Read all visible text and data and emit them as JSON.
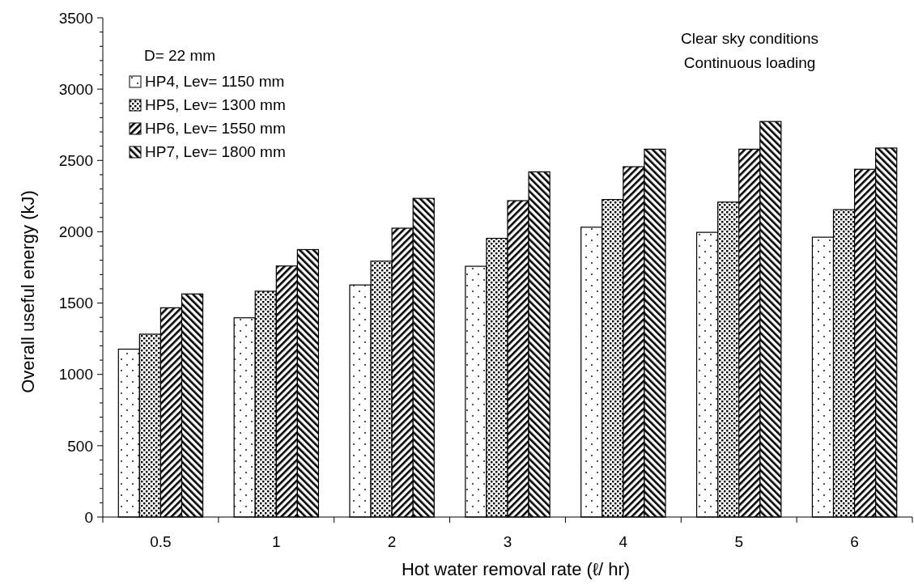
{
  "chart_data": {
    "type": "bar",
    "xlabel": "Hot water removal rate (ℓ/ hr)",
    "ylabel": "Overall useful energy  (kJ)",
    "legend_title": "D= 22 mm",
    "annotations": [
      "Clear sky conditions",
      "Continuous loading"
    ],
    "categories": [
      "0.5",
      "1",
      "2",
      "3",
      "4",
      "5",
      "6"
    ],
    "series": [
      {
        "name": "HP4, Lev= 1150 mm",
        "color": "#000000",
        "values": [
          1177,
          1397,
          1627,
          1758,
          2032,
          1996,
          1962
        ]
      },
      {
        "name": "HP5, Lev= 1300 mm",
        "color": "#000000",
        "values": [
          1282,
          1583,
          1794,
          1954,
          2226,
          2208,
          2155
        ]
      },
      {
        "name": "HP6, Lev= 1550 mm",
        "color": "#000000",
        "values": [
          1467,
          1760,
          2025,
          2218,
          2456,
          2579,
          2438
        ]
      },
      {
        "name": "HP7, Lev= 1800 mm",
        "color": "#000000",
        "values": [
          1564,
          1875,
          2234,
          2420,
          2579,
          2773,
          2587
        ]
      }
    ],
    "ylim": [
      0,
      3500
    ],
    "yticks": [
      0,
      {
        "value": 100,
        "label": null
      },
      {
        "value": 200,
        "label": null
      },
      {
        "value": 300,
        "label": null
      },
      {
        "value": 400,
        "label": null
      },
      500,
      {
        "value": 600,
        "label": null
      },
      {
        "value": 700,
        "label": null
      },
      {
        "value": 800,
        "label": null
      },
      {
        "value": 900,
        "label": null
      },
      1000,
      {
        "value": 1100,
        "label": null
      },
      {
        "value": 1200,
        "label": null
      },
      {
        "value": 1300,
        "label": null
      },
      {
        "value": 1400,
        "label": null
      },
      1500,
      {
        "value": 1600,
        "label": null
      },
      {
        "value": 1700,
        "label": null
      },
      {
        "value": 1800,
        "label": null
      },
      {
        "value": 1900,
        "label": null
      },
      2000,
      {
        "value": 2100,
        "label": null
      },
      {
        "value": 2200,
        "label": null
      },
      {
        "value": 2300,
        "label": null
      },
      {
        "value": 2400,
        "label": null
      },
      2500,
      {
        "value": 2600,
        "label": null
      },
      {
        "value": 2700,
        "label": null
      },
      {
        "value": 2800,
        "label": null
      },
      {
        "value": 2900,
        "label": null
      },
      3000,
      {
        "value": 3100,
        "label": null
      },
      {
        "value": 3200,
        "label": null
      },
      {
        "value": 3300,
        "label": null
      },
      {
        "value": 3400,
        "label": null
      },
      3500
    ],
    "grid": false,
    "legend": "top left"
  }
}
